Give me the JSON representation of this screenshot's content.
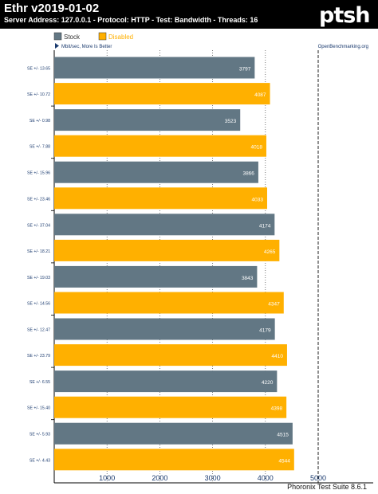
{
  "header": {
    "title": "Ethr v2019-01-02",
    "subtitle": "Server Address: 127.0.0.1 - Protocol: HTTP - Test: Bandwidth - Threads: 16",
    "logo_text": "ptsh"
  },
  "footer": {
    "text": "Phoronix Test Suite 8.6.1"
  },
  "chart_data": {
    "type": "bar",
    "orientation": "horizontal",
    "note": "Mbit/sec, More Is Better",
    "source": "OpenBenchmarking.org",
    "legend_placement": "top-left",
    "series": [
      {
        "name": "Stock",
        "color": "#627784",
        "values": [
          3797,
          3523,
          3866,
          4174,
          3843,
          4179,
          4220,
          4515
        ]
      },
      {
        "name": "Disabled",
        "color": "#ffb000",
        "values": [
          4087,
          4018,
          4033,
          4265,
          4347,
          4410,
          4398,
          4544
        ]
      }
    ],
    "row_labels": [
      "SE +/- 13.65",
      "SE +/- 10.72",
      "SE +/- 0.98",
      "SE +/- 7.88",
      "SE +/- 15.96",
      "SE +/- 23.46",
      "SE +/- 37.04",
      "SE +/- 18.21",
      "SE +/- 19.03",
      "SE +/- 14.56",
      "SE +/- 12.47",
      "SE +/- 23.79",
      "SE +/- 6.55",
      "SE +/- 15.40",
      "SE +/- 5.93",
      "SE +/- 4.43"
    ],
    "x_ticks": [
      1000,
      2000,
      3000,
      4000,
      5000
    ],
    "xlim": [
      0,
      5000
    ],
    "grid": "vertical dashed"
  }
}
